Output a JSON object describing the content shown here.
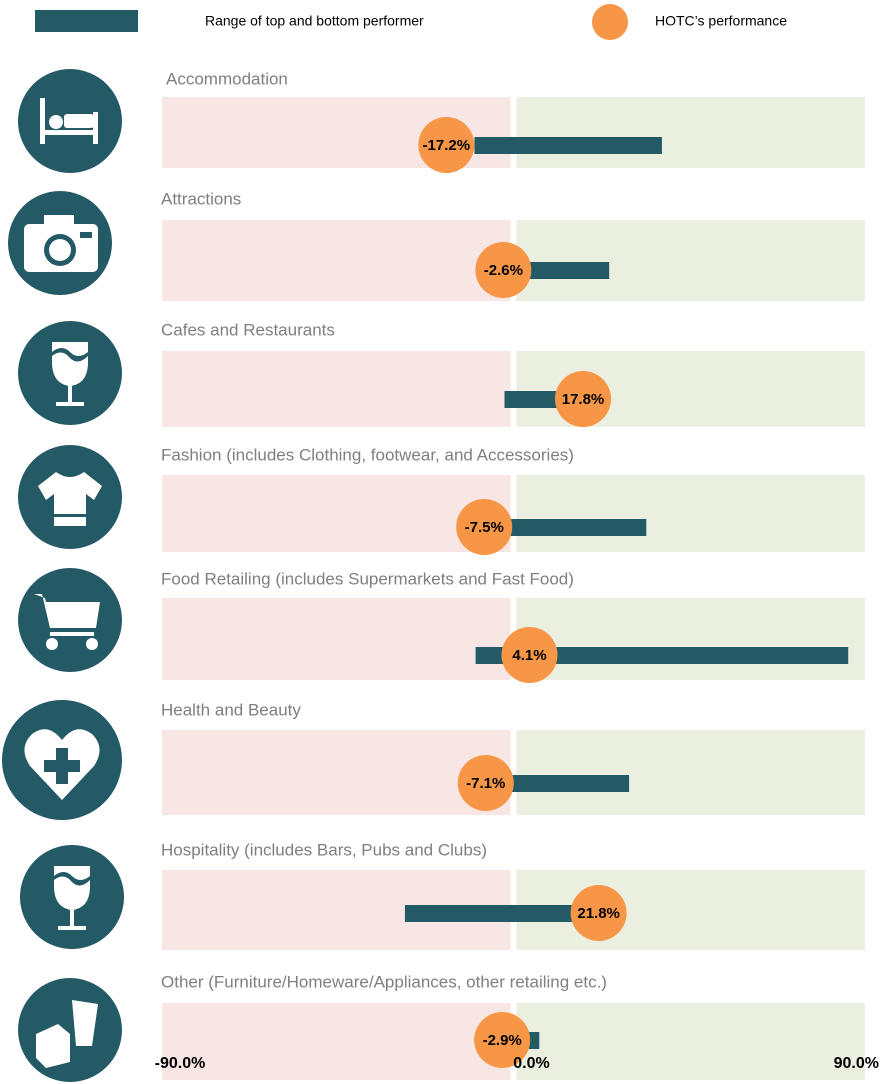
{
  "chart_data": {
    "type": "range_dot",
    "categories": [
      "Accommodation",
      "Attractions",
      "Cafes and Restaurants",
      "Fashion (includes Clothing, footwear, and Accessories)",
      "Food Retailing (includes Supermarkets and Fast Food)",
      "Health and Beauty",
      "Hospitality (includes Bars, Pubs and Clubs)",
      "Other (Furniture/Homeware/Appliances, other retailing etc.)"
    ],
    "series": [
      {
        "name": "Range of top and bottom performer",
        "color": "#245a66",
        "low": [
          -10,
          -1,
          -2.3,
          -7.5,
          -9.7,
          -7,
          -27.8,
          -2.9
        ],
        "high": [
          38,
          24.5,
          18,
          34,
          85.7,
          29.6,
          22,
          6.6
        ]
      },
      {
        "name": "HOTC’s performance",
        "color": "#f79646",
        "values": [
          -17.2,
          -2.6,
          17.8,
          -7.5,
          4.1,
          -7.1,
          21.8,
          -2.9
        ],
        "value_labels": [
          "-17.2%",
          "-2.6%",
          "17.8%",
          "-7.5%",
          "4.1%",
          "-7.1%",
          "21.8%",
          "-2.9%"
        ]
      }
    ],
    "xlim": [
      -90,
      90
    ],
    "xticks": [
      {
        "value": -90,
        "label": "-90.0%"
      },
      {
        "value": 0,
        "label": "0.0%"
      },
      {
        "value": 90,
        "label": "90.0%"
      }
    ],
    "negative_color": "#f8e6e4",
    "positive_color": "#ebefdf"
  }
}
